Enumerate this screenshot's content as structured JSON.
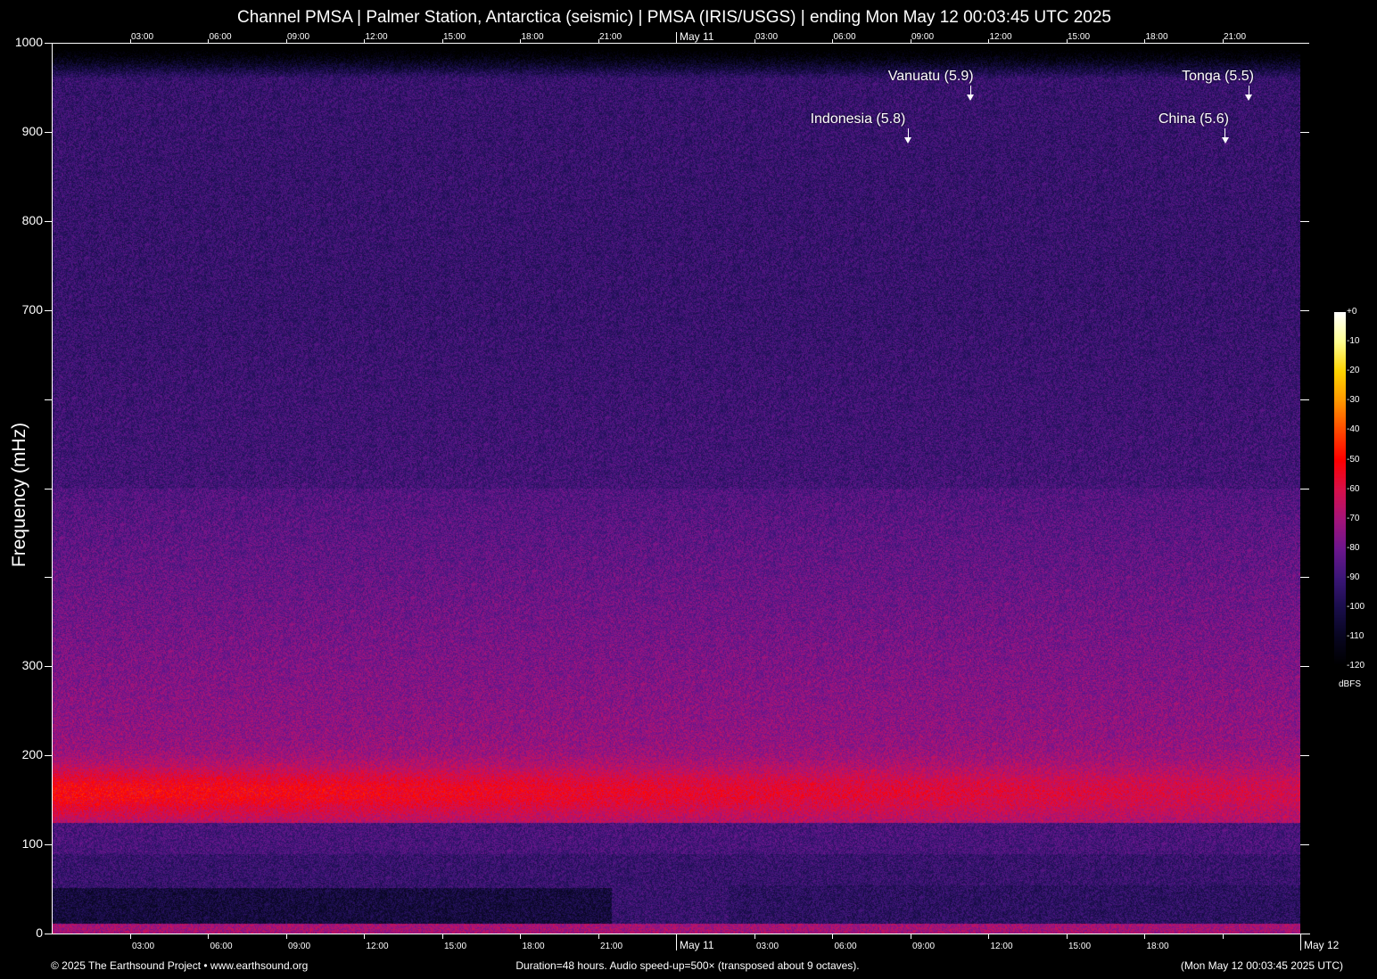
{
  "title": "Channel PMSA | Palmer Station, Antarctica (seismic) | PMSA (IRIS/USGS) | ending Mon May 12 00:03:45 UTC 2025",
  "chart_data": {
    "type": "heatmap",
    "title": "Channel PMSA | Palmer Station, Antarctica (seismic) | PMSA (IRIS/USGS) | ending Mon May 12 00:03:45 UTC 2025",
    "ylabel": "Frequency (mHz)",
    "ylim": [
      0,
      1000
    ],
    "y_ticks": [
      0,
      100,
      200,
      300,
      400,
      500,
      600,
      700,
      800,
      900,
      1000
    ],
    "y_tick_labels": [
      "0",
      "100",
      "200",
      "300",
      "",
      "",
      "",
      "700",
      "800",
      "900",
      "1000"
    ],
    "x_duration_hours": 48,
    "x_top_tick_labels": [
      "03:00",
      "06:00",
      "09:00",
      "12:00",
      "15:00",
      "18:00",
      "21:00",
      "May 11",
      "03:00",
      "06:00",
      "09:00",
      "12:00",
      "15:00",
      "18:00",
      "21:00"
    ],
    "x_bottom_tick_labels": [
      "03:00",
      "06:00",
      "09:00",
      "12:00",
      "15:00",
      "18:00",
      "21:00",
      "May 11",
      "03:00",
      "06:00",
      "09:00",
      "12:00",
      "15:00",
      "18:00",
      "",
      "May 12"
    ],
    "colorbar": {
      "label": "dBFS",
      "range": [
        -120,
        0
      ],
      "tick_labels": [
        "+0",
        "-10",
        "-20",
        "-30",
        "-40",
        "-50",
        "-60",
        "-70",
        "-80",
        "-90",
        "-100",
        "-110",
        "-120"
      ],
      "colors": [
        "#ffffff",
        "#ffff90",
        "#ffd400",
        "#ff9800",
        "#ff4a00",
        "#ff0000",
        "#d8104a",
        "#a6147a",
        "#6e168e",
        "#3c1678",
        "#1a0e4c",
        "#080620",
        "#000000"
      ]
    },
    "dominant_band_mHz": [
      130,
      200
    ],
    "annotations": [
      {
        "label": "Indonesia (5.8)",
        "hour": 32.9,
        "row": 2
      },
      {
        "label": "Vanuatu (5.9)",
        "hour": 35.3,
        "row": 1
      },
      {
        "label": "China (5.6)",
        "hour": 45.1,
        "row": 2
      },
      {
        "label": "Tonga (5.5)",
        "hour": 46.0,
        "row": 1
      }
    ]
  },
  "footer": {
    "copyright": "© 2025 The Earthsound Project • www.earthsound.org",
    "duration": "Duration=48 hours. Audio speed-up=500× (transposed about 9 octaves).",
    "timestamp": "(Mon May 12 00:03:45 2025 UTC)"
  }
}
